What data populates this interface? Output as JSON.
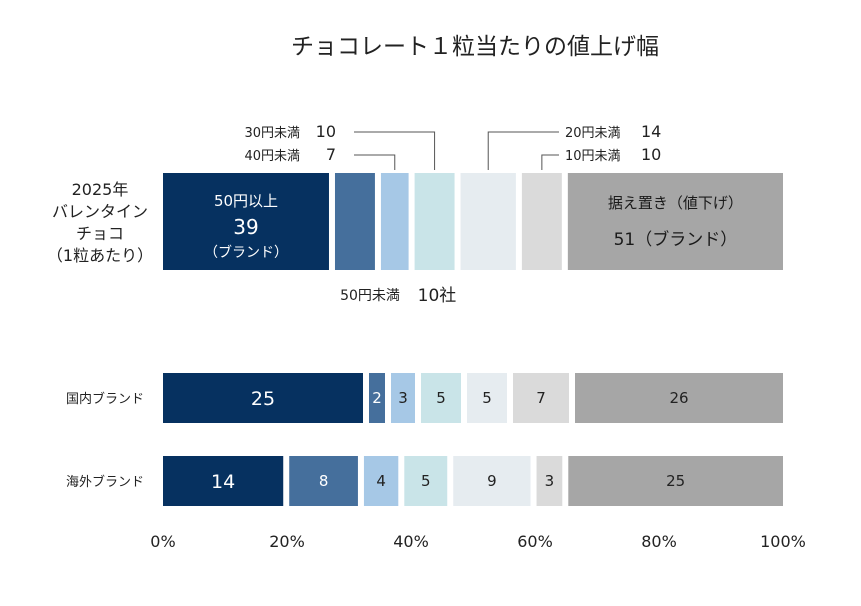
{
  "chart_data": {
    "type": "bar",
    "orientation": "horizontal",
    "stacked": true,
    "title": "チョコレート１粒当たりの値上げ幅",
    "xlim": [
      0,
      100
    ],
    "x_ticks": [
      "0%",
      "20%",
      "40%",
      "60%",
      "80%",
      "100%"
    ],
    "grid": false,
    "colors": [
      "#063160",
      "#456f9c",
      "#a6c8e6",
      "#c9e4e8",
      "#e6ecf0",
      "#dadada",
      "#a6a6a6"
    ],
    "top_bar": {
      "label_lines": [
        "2025年",
        "バレンタイン",
        "チョコ",
        "（1粒あたり）"
      ],
      "segments": [
        {
          "share": 27,
          "text_lines": [
            "50円以上",
            "39",
            "（ブランド）"
          ]
        },
        {
          "share": 6.5
        },
        {
          "share": 4.5
        },
        {
          "share": 6.5
        },
        {
          "share": 9
        },
        {
          "share": 6.5
        },
        {
          "share": 35,
          "text_lines": [
            "据え置き（値下げ）",
            "51（ブランド）"
          ]
        }
      ],
      "callouts": [
        {
          "label": "30円未満",
          "count": "10",
          "segment": 3
        },
        {
          "label": "40円未満",
          "count": "7",
          "segment": 2
        },
        {
          "label": "20円未満",
          "count": "14",
          "segment": 4
        },
        {
          "label": "10円未満",
          "count": "10",
          "segment": 5
        }
      ],
      "bracket": {
        "label": "50円未満",
        "count": "10社"
      }
    },
    "categories": [
      "国内ブランド",
      "海外ブランド"
    ],
    "series": [
      {
        "values": [
          25,
          14
        ]
      },
      {
        "values": [
          2,
          8
        ]
      },
      {
        "values": [
          3,
          4
        ]
      },
      {
        "values": [
          5,
          5
        ]
      },
      {
        "values": [
          5,
          9
        ]
      },
      {
        "values": [
          7,
          3
        ]
      },
      {
        "values": [
          26,
          25
        ]
      }
    ]
  }
}
